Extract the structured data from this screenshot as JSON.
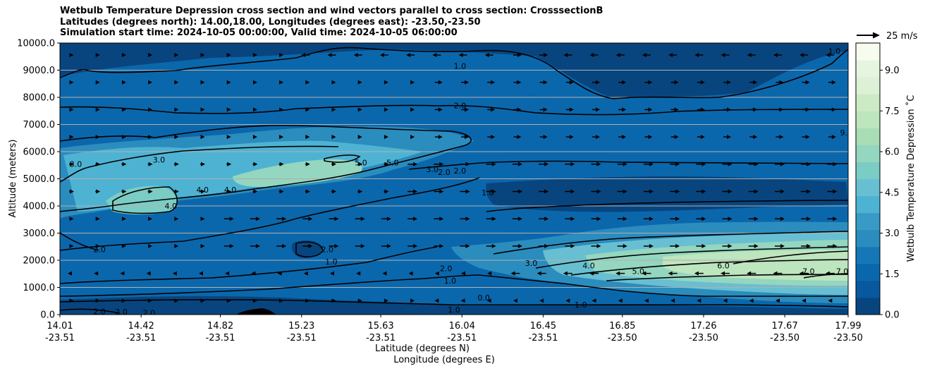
{
  "title_lines": [
    "Wetbulb Temperature Depression cross section and wind vectors parallel to cross section: CrosssectionB",
    "Latitudes (degrees north): 14.00,18.00, Longitudes (degrees east): -23.50,-23.50",
    "Simulation start time: 2024-10-05 00:00:00, Valid time: 2024-10-05 06:00:00"
  ],
  "quiver_key_label": "25 m/s",
  "chart_data": {
    "type": "heatmap",
    "ylabel": "Altitude (meters)",
    "xlabel_lines": [
      "Latitude (degrees N)",
      "Longitude (degrees E)"
    ],
    "ylim": [
      0,
      10000
    ],
    "yticks": [
      "0.0",
      "1000.0",
      "2000.0",
      "3000.0",
      "4000.0",
      "5000.0",
      "6000.0",
      "7000.0",
      "8000.0",
      "9000.0",
      "10000.0"
    ],
    "yticks_values": [
      0,
      1000,
      2000,
      3000,
      4000,
      5000,
      6000,
      7000,
      8000,
      9000,
      10000
    ],
    "xticks_lat": [
      "14.01",
      "14.42",
      "14.82",
      "15.23",
      "15.63",
      "16.04",
      "16.45",
      "16.85",
      "17.26",
      "17.67",
      "17.99"
    ],
    "xticks_lon": [
      "-23.51",
      "-23.51",
      "-23.51",
      "-23.51",
      "-23.51",
      "-23.51",
      "-23.51",
      "-23.50",
      "-23.50",
      "-23.50",
      "-23.50"
    ],
    "grid": "horizontal",
    "colorbar": {
      "label": "Wetbulb Temperature Depression ˚C",
      "ticks": [
        "0.0",
        "1.5",
        "3.0",
        "4.5",
        "6.0",
        "7.5",
        "9.0"
      ],
      "tick_values": [
        0,
        1.5,
        3.0,
        4.5,
        6.0,
        7.5,
        9.0
      ],
      "range": [
        0,
        10
      ],
      "colors": [
        "#08457f",
        "#08589e",
        "#0b67ac",
        "#1577b5",
        "#2b8cbe",
        "#3a9ac6",
        "#4eb3d3",
        "#68bfd1",
        "#7bccc4",
        "#94d6bf",
        "#a8ddb5",
        "#bde5be",
        "#ccebc5",
        "#dcf1d6",
        "#e5f5e0",
        "#f7fcf0"
      ]
    },
    "contour_labels": [
      {
        "text": "1.0",
        "lat": 16.03,
        "alt": 9150
      },
      {
        "text": "1.0",
        "lat": 17.92,
        "alt": 9700
      },
      {
        "text": "2.0",
        "lat": 16.03,
        "alt": 7700
      },
      {
        "text": "3.0",
        "lat": 14.09,
        "alt": 5550
      },
      {
        "text": "3.0",
        "lat": 14.51,
        "alt": 5700
      },
      {
        "text": "3.0",
        "lat": 15.89,
        "alt": 5350
      },
      {
        "text": "2.0",
        "lat": 15.95,
        "alt": 5250
      },
      {
        "text": "2.0",
        "lat": 16.03,
        "alt": 5300
      },
      {
        "text": "5.0",
        "lat": 15.53,
        "alt": 5600
      },
      {
        "text": "5.0",
        "lat": 15.69,
        "alt": 5600
      },
      {
        "text": "4.0",
        "lat": 14.73,
        "alt": 4600
      },
      {
        "text": "4.0",
        "lat": 14.87,
        "alt": 4600
      },
      {
        "text": "4.0",
        "lat": 14.57,
        "alt": 4000
      },
      {
        "text": "1.0",
        "lat": 16.17,
        "alt": 4500
      },
      {
        "text": "9.0",
        "lat": 17.98,
        "alt": 6700
      },
      {
        "text": "2.0",
        "lat": 14.21,
        "alt": 2400
      },
      {
        "text": "2.0",
        "lat": 15.36,
        "alt": 2400
      },
      {
        "text": "1.0",
        "lat": 15.38,
        "alt": 1950
      },
      {
        "text": "2.0",
        "lat": 15.96,
        "alt": 1700
      },
      {
        "text": "1.0",
        "lat": 15.98,
        "alt": 1250
      },
      {
        "text": "3.0",
        "lat": 16.39,
        "alt": 1900
      },
      {
        "text": "4.0",
        "lat": 16.68,
        "alt": 1800
      },
      {
        "text": "5.0",
        "lat": 16.93,
        "alt": 1600
      },
      {
        "text": "6.0",
        "lat": 17.36,
        "alt": 1800
      },
      {
        "text": "7.0",
        "lat": 17.79,
        "alt": 1600
      },
      {
        "text": "7.0",
        "lat": 17.96,
        "alt": 1600
      },
      {
        "text": "0.0",
        "lat": 16.15,
        "alt": 620
      },
      {
        "text": "1.0",
        "lat": 16.64,
        "alt": 370
      },
      {
        "text": "1.0",
        "lat": 16.0,
        "alt": 180
      },
      {
        "text": "2.0",
        "lat": 14.21,
        "alt": 120
      },
      {
        "text": "2.0",
        "lat": 14.32,
        "alt": 110
      },
      {
        "text": "2.0",
        "lat": 14.46,
        "alt": 60
      }
    ]
  }
}
